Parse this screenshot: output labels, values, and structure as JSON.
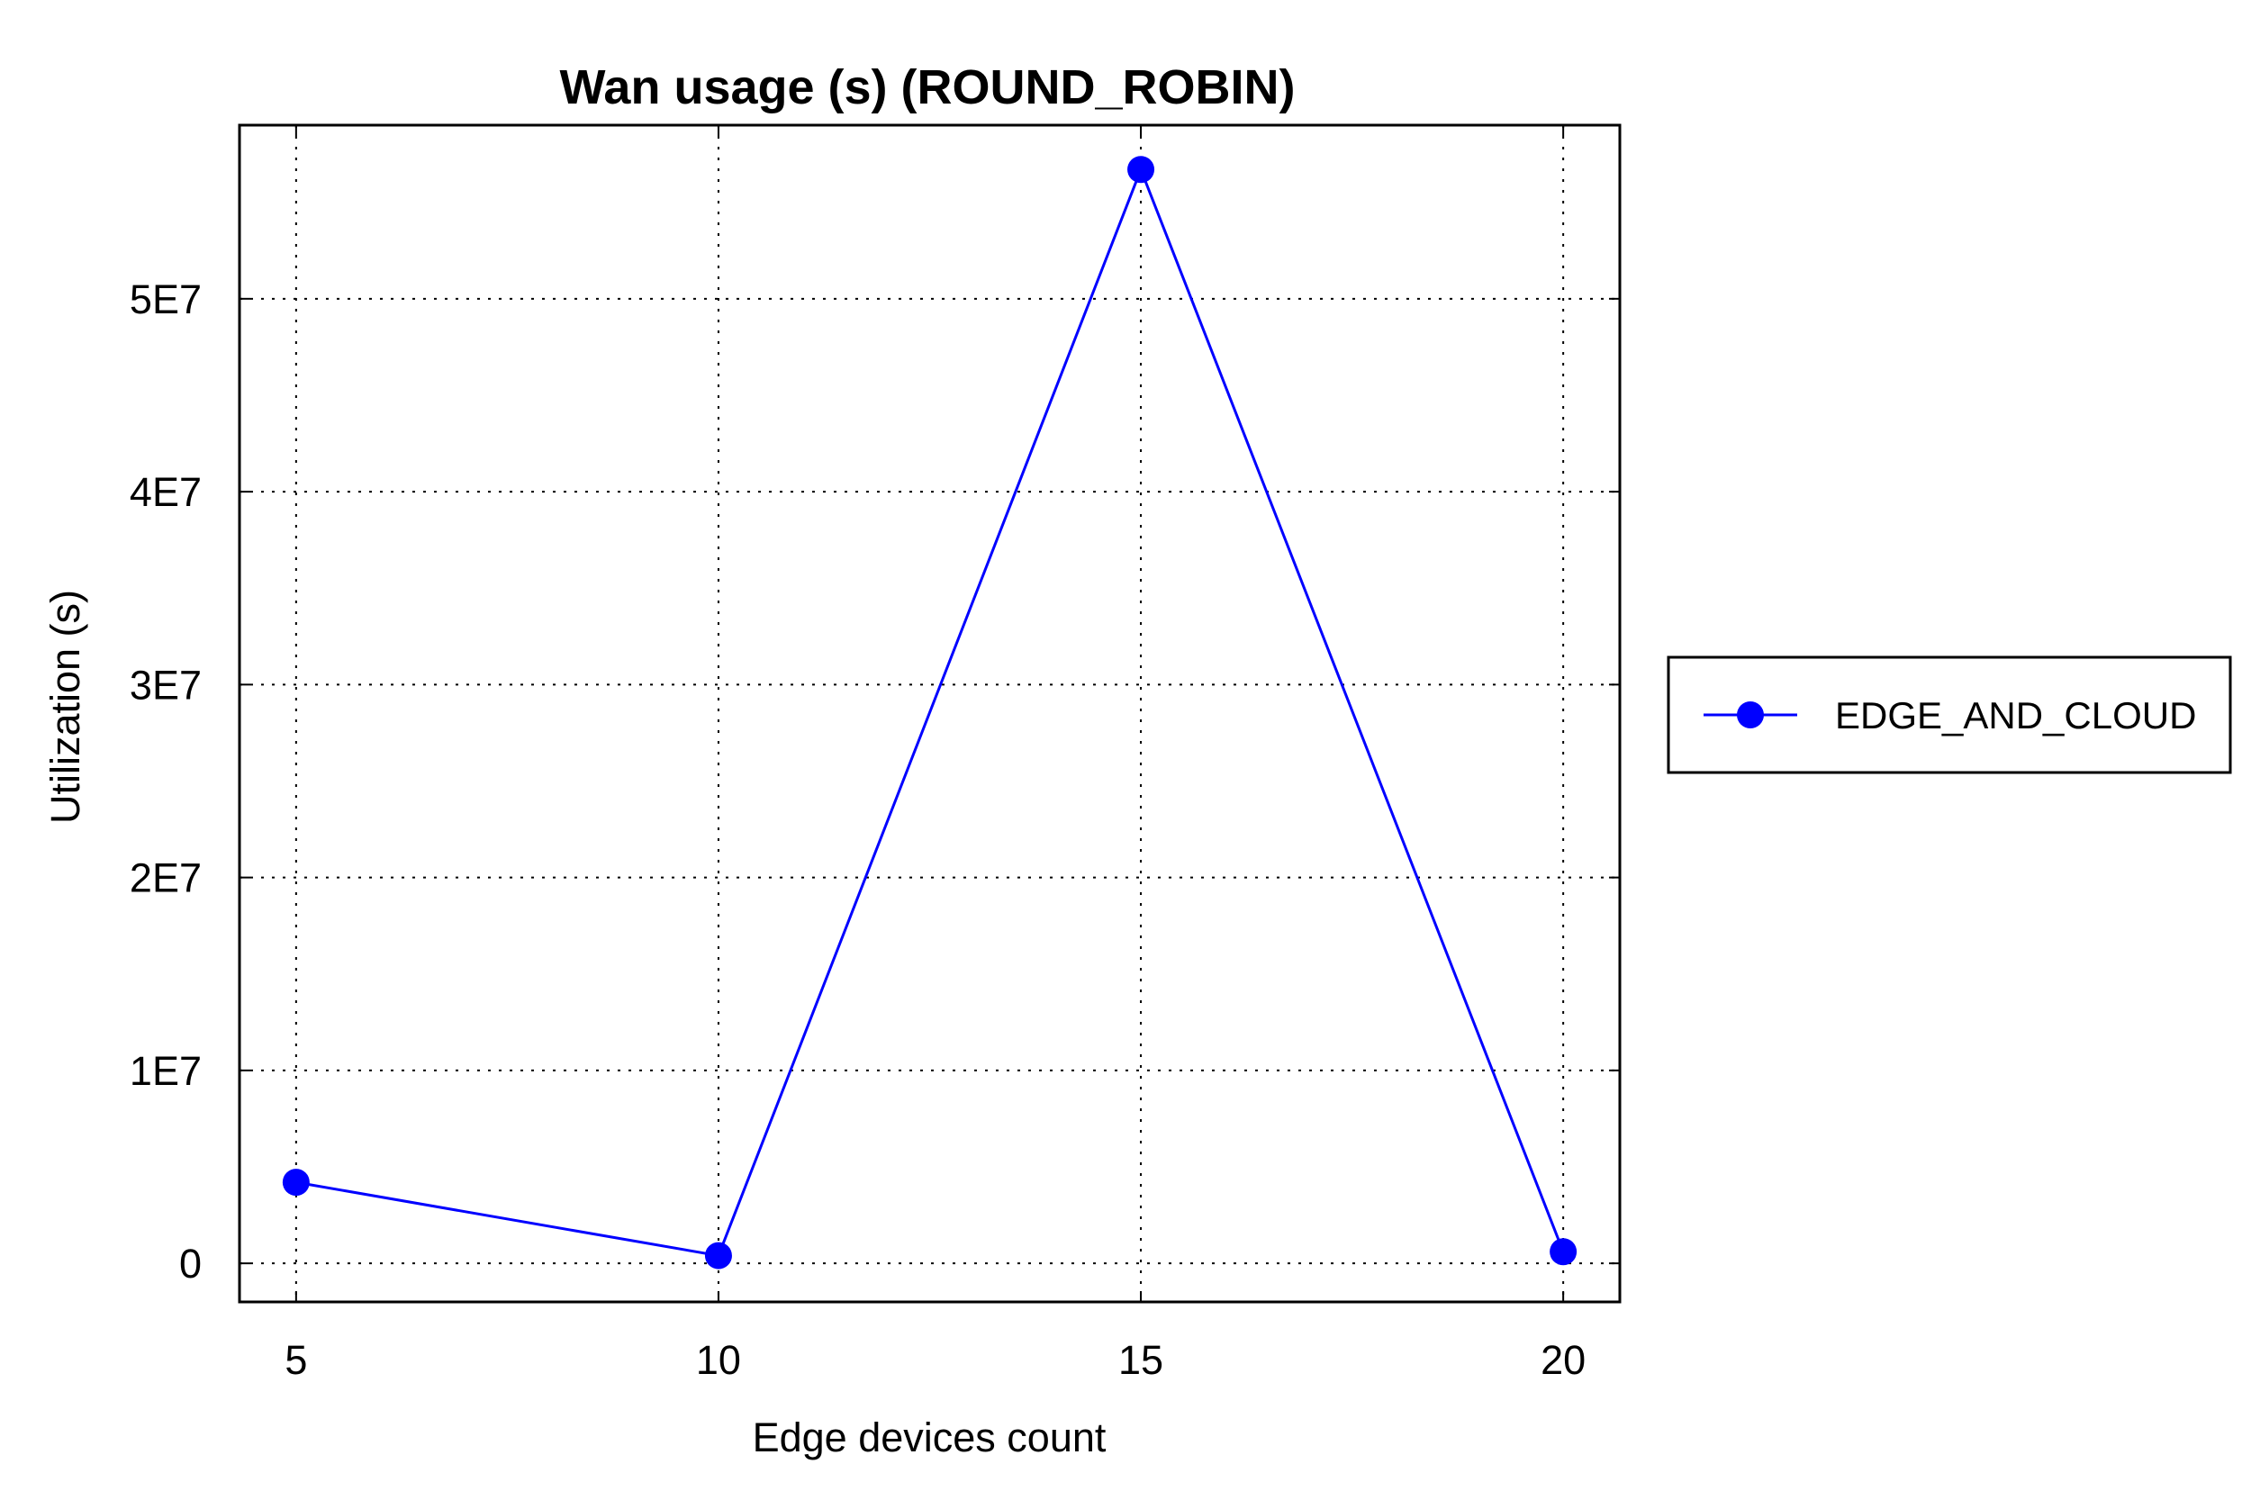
{
  "chart_data": {
    "type": "line",
    "title": "Wan usage (s) (ROUND_ROBIN)",
    "xlabel": "Edge devices count",
    "ylabel": "Utilization (s)",
    "x": [
      5,
      10,
      15,
      20
    ],
    "x_tick_labels": [
      "5",
      "10",
      "15",
      "20"
    ],
    "y_ticks": [
      0,
      10000000,
      20000000,
      30000000,
      40000000,
      50000000
    ],
    "y_tick_labels": [
      "0",
      "1E7",
      "2E7",
      "3E7",
      "4E7",
      "5E7"
    ],
    "xlim": [
      4.33,
      20.67
    ],
    "ylim": [
      -2000000,
      59000000
    ],
    "grid": true,
    "legend_position": "outside-right",
    "series": [
      {
        "name": "EDGE_AND_CLOUD",
        "color": "#0000ff",
        "marker": "circle",
        "values": [
          4200000,
          400000,
          56700000,
          600000
        ]
      }
    ]
  }
}
